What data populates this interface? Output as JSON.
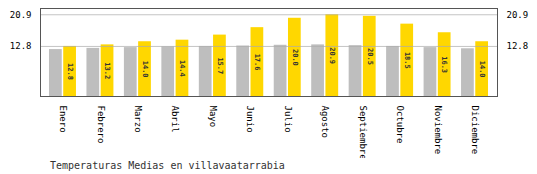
{
  "chart_data": {
    "type": "bar",
    "title": "Temperaturas Medias en villavaatarrabia",
    "categories": [
      "Enero",
      "Febrero",
      "Marzo",
      "Abril",
      "Mayo",
      "Junio",
      "Julio",
      "Agosto",
      "Septiembre",
      "Octubre",
      "Noviembre",
      "Diciembre"
    ],
    "series": [
      {
        "color": "#BEBEBE",
        "values": [
          12.0,
          12.3,
          12.5,
          12.7,
          12.8,
          12.9,
          13.1,
          13.2,
          13.0,
          12.8,
          12.5,
          12.2
        ]
      },
      {
        "color": "#FFD700",
        "values": [
          12.8,
          13.2,
          14.0,
          14.4,
          15.7,
          17.6,
          20.0,
          20.9,
          20.5,
          18.5,
          16.3,
          14.0
        ],
        "data_labels": true,
        "value_labels": [
          "12.8",
          "13.2",
          "14.0",
          "14.4",
          "15.7",
          "17.6",
          "20.0",
          "20.9",
          "20.5",
          "18.5",
          "16.3",
          "14.0"
        ]
      }
    ],
    "ylim": [
      0,
      22.5
    ],
    "yticks": [
      12.8,
      20.9
    ],
    "grid": true
  }
}
